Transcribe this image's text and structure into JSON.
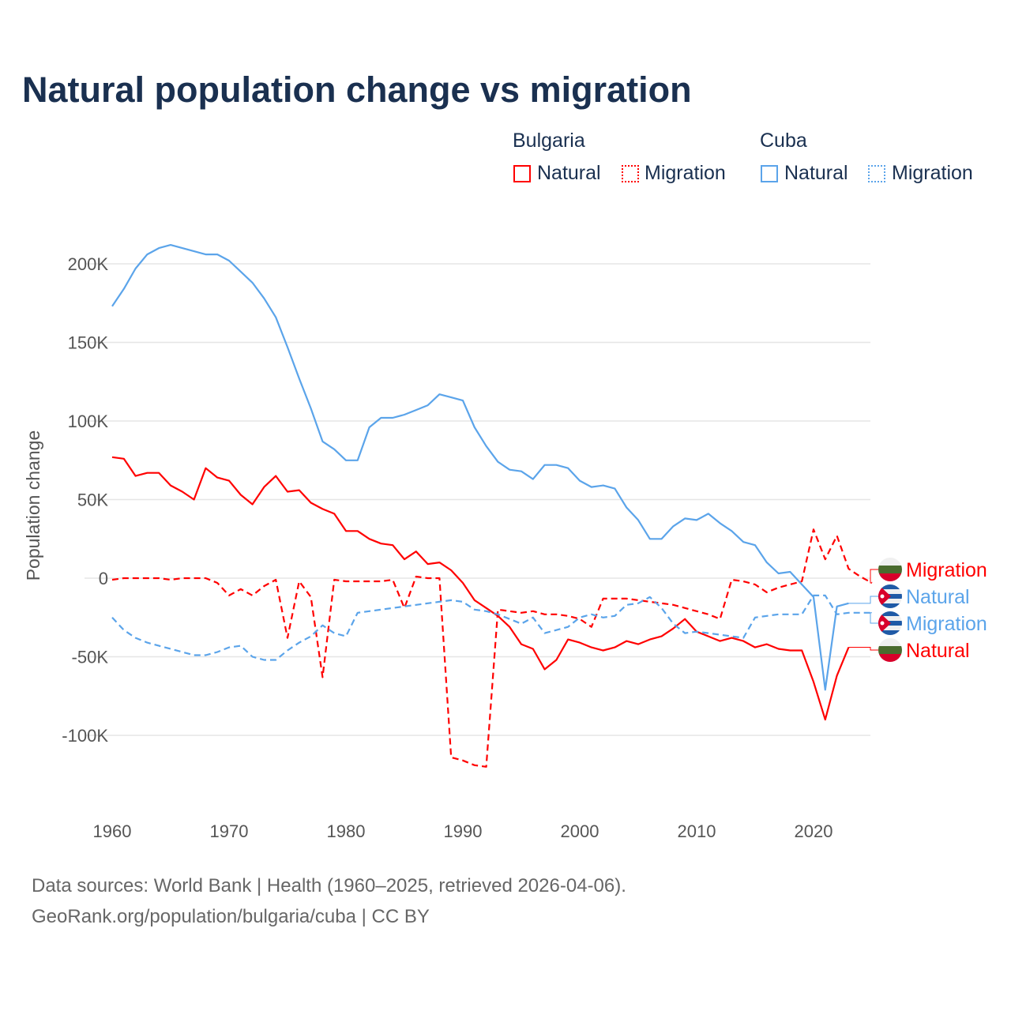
{
  "title": "Natural population change vs migration",
  "legend": {
    "groups": [
      {
        "name": "Bulgaria",
        "items": [
          "Natural",
          "Migration"
        ]
      },
      {
        "name": "Cuba",
        "items": [
          "Natural",
          "Migration"
        ]
      }
    ]
  },
  "sources": {
    "line1": "Data sources: World Bank | Health (1960–2025, retrieved 2026-04-06).",
    "line2": "GeoRank.org/population/bulgaria/cuba | CC BY"
  },
  "colors": {
    "bulgaria": "#ff0000",
    "cuba": "#5ba4ea",
    "grid": "#e6e6e6"
  },
  "chart_data": {
    "type": "line",
    "title": "Natural population change vs migration",
    "xlabel": "",
    "ylabel": "Population change",
    "xlim": [
      1960,
      2025
    ],
    "ylim": [
      -135,
      225
    ],
    "x_ticks": [
      1960,
      1970,
      1980,
      1990,
      2000,
      2010,
      2020
    ],
    "x_tick_labels": [
      "1960",
      "1970",
      "1980",
      "1990",
      "2000",
      "2010",
      "2020"
    ],
    "y_ticks": [
      200,
      150,
      100,
      50,
      0,
      -50,
      -100
    ],
    "y_tick_labels": [
      "200K",
      "150K",
      "100K",
      "50K",
      "0",
      "-50K",
      "-100K"
    ],
    "grid": true,
    "legend_position": "top-right",
    "units": "thousands",
    "series": [
      {
        "name": "Bulgaria Natural",
        "label": "Natural",
        "country": "bulgaria",
        "dashed": false,
        "start": 1960,
        "values": [
          77,
          76,
          65,
          67,
          67,
          59,
          55,
          50,
          70,
          64,
          62,
          53,
          47,
          58,
          65,
          55,
          56,
          48,
          44,
          41,
          30,
          30,
          25,
          22,
          21,
          12,
          17,
          9,
          10,
          5,
          -3,
          -14,
          -19,
          -24,
          -31,
          -42,
          -45,
          -58,
          -52,
          -39,
          -41,
          -44,
          -46,
          -44,
          -40,
          -42,
          -39,
          -37,
          -32,
          -26,
          -34,
          -37,
          -40,
          -38,
          -40,
          -44,
          -42,
          -45,
          -46,
          -46,
          -66,
          -90,
          -62,
          -44
        ]
      },
      {
        "name": "Bulgaria Migration",
        "label": "Migration",
        "country": "bulgaria",
        "dashed": true,
        "start": 1960,
        "values": [
          -1,
          0,
          0,
          0,
          0,
          -1,
          0,
          0,
          0,
          -3,
          -11,
          -7,
          -11,
          -5,
          -1,
          -38,
          -2,
          -12,
          -63,
          -1,
          -2,
          -2,
          -2,
          -2,
          -1,
          -19,
          1,
          0,
          0,
          -114,
          -116,
          -119,
          -120,
          -20,
          -21,
          -22,
          -21,
          -23,
          -23,
          -24,
          -26,
          -31,
          -13,
          -13,
          -13,
          -14,
          -15,
          -16,
          -17,
          -19,
          -21,
          -23,
          -26,
          -1,
          -2,
          -4,
          -9,
          -6,
          -4,
          -2,
          31,
          12,
          27,
          6,
          1,
          -3
        ]
      },
      {
        "name": "Cuba Natural",
        "label": "Natural",
        "country": "cuba",
        "dashed": false,
        "start": 1960,
        "values": [
          173,
          184,
          197,
          206,
          210,
          212,
          210,
          208,
          206,
          206,
          202,
          195,
          188,
          178,
          166,
          147,
          127,
          108,
          87,
          82,
          75,
          75,
          96,
          102,
          102,
          104,
          107,
          110,
          117,
          115,
          113,
          96,
          84,
          74,
          69,
          68,
          63,
          72,
          72,
          70,
          62,
          58,
          59,
          57,
          45,
          37,
          25,
          25,
          33,
          38,
          37,
          41,
          35,
          30,
          23,
          21,
          10,
          3,
          4,
          -4,
          -12,
          -71,
          -18,
          -16
        ]
      },
      {
        "name": "Cuba Migration",
        "label": "Migration",
        "country": "cuba",
        "dashed": true,
        "start": 1960,
        "values": [
          -25,
          -33,
          -38,
          -41,
          -43,
          -45,
          -47,
          -49,
          -49,
          -47,
          -44,
          -43,
          -50,
          -52,
          -52,
          -46,
          -41,
          -37,
          -30,
          -35,
          -37,
          -22,
          -21,
          -20,
          -19,
          -18,
          -17,
          -16,
          -15,
          -14,
          -15,
          -20,
          -21,
          -23,
          -26,
          -29,
          -25,
          -35,
          -33,
          -31,
          -25,
          -23,
          -25,
          -24,
          -17,
          -16,
          -12,
          -19,
          -29,
          -35,
          -34,
          -35,
          -36,
          -37,
          -38,
          -25,
          -24,
          -23,
          -23,
          -23,
          -11,
          -11,
          -23,
          -22,
          -22,
          -22
        ]
      }
    ]
  }
}
